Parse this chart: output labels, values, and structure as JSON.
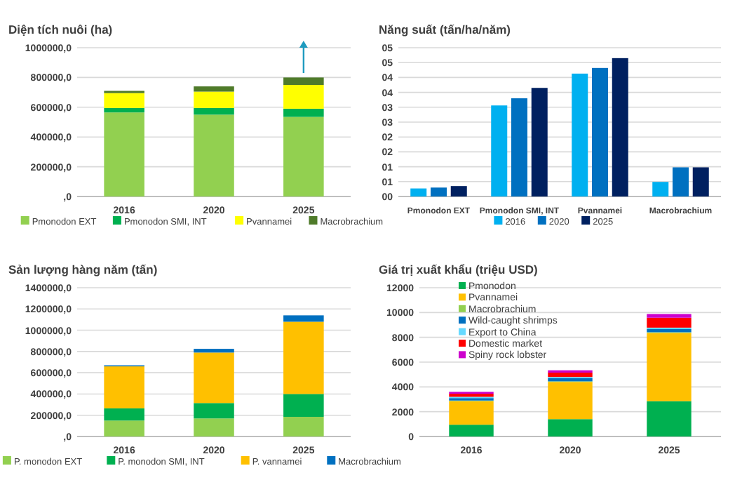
{
  "chart_data": [
    {
      "type": "bar",
      "title": "Diện tích nuôi (ha)",
      "stacked": true,
      "categories": [
        "2016",
        "2020",
        "2025"
      ],
      "series": [
        {
          "name": "Pmonodon EXT",
          "color": "#92d050",
          "values": [
            565000,
            550000,
            535000
          ]
        },
        {
          "name": "Pmonodon SMI, INT",
          "color": "#00b050",
          "values": [
            30000,
            45000,
            55000
          ]
        },
        {
          "name": "Pvannamei",
          "color": "#ffff00",
          "values": [
            100000,
            110000,
            160000
          ]
        },
        {
          "name": "Macrobrachium",
          "color": "#4f7b2a",
          "values": [
            15000,
            35000,
            50000
          ]
        }
      ],
      "ylim": [
        0,
        1000000
      ],
      "yticks": [
        {
          "value": 0,
          "label": ",0"
        },
        {
          "value": 200000,
          "label": "200000,0"
        },
        {
          "value": 400000,
          "label": "400000,0"
        },
        {
          "value": 600000,
          "label": "600000,0"
        },
        {
          "value": 800000,
          "label": "800000,0"
        },
        {
          "value": 1000000,
          "label": "1000000,0"
        }
      ],
      "grid": "y",
      "legend": "bottom"
    },
    {
      "type": "bar",
      "title": "Năng suất (tấn/ha/năm)",
      "categories": [
        "Pmonodon EXT",
        "Pmonodon SMI, INT",
        "Pvannamei",
        "Macrobrachium"
      ],
      "series": [
        {
          "name": "2016",
          "color": "#00b0f0",
          "values": [
            0.27,
            3.06,
            4.13,
            0.49
          ]
        },
        {
          "name": "2020",
          "color": "#0070c0",
          "values": [
            0.3,
            3.3,
            4.32,
            0.98
          ]
        },
        {
          "name": "2025",
          "color": "#002060",
          "values": [
            0.35,
            3.65,
            4.65,
            0.98
          ]
        }
      ],
      "ylim": [
        0,
        5
      ],
      "yticks": [
        {
          "value": 0,
          "label": "00"
        },
        {
          "value": 0.5,
          "label": "01"
        },
        {
          "value": 1,
          "label": "01"
        },
        {
          "value": 1.5,
          "label": "02"
        },
        {
          "value": 2,
          "label": "02"
        },
        {
          "value": 2.5,
          "label": "03"
        },
        {
          "value": 3,
          "label": "03"
        },
        {
          "value": 3.5,
          "label": "04"
        },
        {
          "value": 4,
          "label": "04"
        },
        {
          "value": 4.5,
          "label": "05"
        },
        {
          "value": 5,
          "label": "05"
        }
      ],
      "grid": "y",
      "legend": "bottom"
    },
    {
      "type": "bar",
      "title": "Sản lượng hàng năm (tấn)",
      "stacked": true,
      "categories": [
        "2016",
        "2020",
        "2025"
      ],
      "series": [
        {
          "name": "P. monodon EXT",
          "color": "#92d050",
          "values": [
            150000,
            170000,
            185000
          ]
        },
        {
          "name": "P. monodon SMI, INT",
          "color": "#00b050",
          "values": [
            115000,
            145000,
            215000
          ]
        },
        {
          "name": "P. vannamei",
          "color": "#ffc000",
          "values": [
            395000,
            475000,
            680000
          ]
        },
        {
          "name": "Macrobrachium",
          "color": "#0070c0",
          "values": [
            10000,
            35000,
            60000
          ]
        }
      ],
      "ylim": [
        0,
        1400000
      ],
      "yticks": [
        {
          "value": 0,
          "label": ",0"
        },
        {
          "value": 200000,
          "label": "200000,0"
        },
        {
          "value": 400000,
          "label": "400000,0"
        },
        {
          "value": 600000,
          "label": "600000,0"
        },
        {
          "value": 800000,
          "label": "800000,0"
        },
        {
          "value": 1000000,
          "label": "1000000,0"
        },
        {
          "value": 1200000,
          "label": "1200000,0"
        },
        {
          "value": 1400000,
          "label": "1400000,0"
        }
      ],
      "grid": "y",
      "legend": "bottom"
    },
    {
      "type": "bar",
      "title": "Giá trị xuất khẩu (triệu USD)",
      "stacked": true,
      "categories": [
        "2016",
        "2020",
        "2025"
      ],
      "series": [
        {
          "name": "Pmonodon",
          "color": "#00b050",
          "values": [
            950,
            1400,
            2850
          ]
        },
        {
          "name": "Pvannamei",
          "color": "#ffc000",
          "values": [
            1900,
            3000,
            5500
          ]
        },
        {
          "name": "Macrobrachium",
          "color": "#92d050",
          "values": [
            50,
            50,
            60
          ]
        },
        {
          "name": "Wild-caught shrimps",
          "color": "#0070c0",
          "values": [
            200,
            250,
            250
          ]
        },
        {
          "name": "Export to China",
          "color": "#66d9ff",
          "values": [
            100,
            100,
            120
          ]
        },
        {
          "name": "Domestic market",
          "color": "#ff0000",
          "values": [
            250,
            350,
            800
          ]
        },
        {
          "name": "Spiny rock lobster",
          "color": "#cc00cc",
          "values": [
            150,
            190,
            300
          ]
        }
      ],
      "ylim": [
        0,
        12000
      ],
      "yticks": [
        0,
        2000,
        4000,
        6000,
        8000,
        10000,
        12000
      ],
      "grid": "y",
      "legend": "top left"
    }
  ]
}
